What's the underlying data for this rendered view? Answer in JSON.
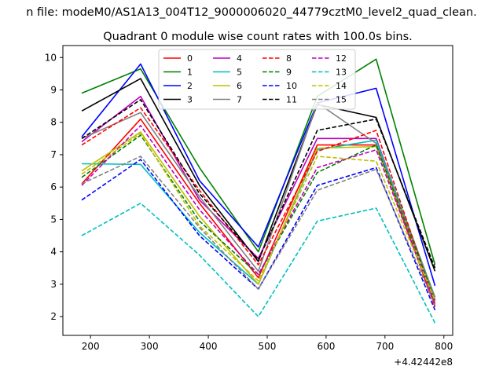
{
  "figure": {
    "suptitle": "n file: modeM0/AS1A13_004T12_9000006020_44779cztM0_level2_quad_clean.",
    "offset_label": "+4.42442e8"
  },
  "chart_data": {
    "type": "line",
    "title": "Quadrant 0 module wise count rates with 100.0s bins.",
    "xlabel": "",
    "ylabel": "",
    "x_offset": 442442000,
    "x": [
      442442185,
      442442285,
      442442385,
      442442485,
      442442585,
      442442685,
      442442785
    ],
    "xlim": [
      442442153,
      442442815
    ],
    "ylim": [
      1.42,
      10.37
    ],
    "xticks": [
      200,
      300,
      400,
      500,
      600,
      700,
      800
    ],
    "yticks": [
      2,
      3,
      4,
      5,
      6,
      7,
      8,
      9,
      10
    ],
    "legend": {
      "location": "top-center",
      "columns": 4
    },
    "grid": false,
    "series": [
      {
        "name": "0",
        "color": "#ff0000",
        "dash": "solid",
        "values": [
          6.1,
          8.1,
          5.5,
          3.2,
          7.3,
          7.3,
          2.3
        ]
      },
      {
        "name": "1",
        "color": "#008000",
        "dash": "solid",
        "values": [
          8.9,
          9.65,
          6.6,
          4.0,
          8.8,
          9.95,
          3.6
        ]
      },
      {
        "name": "2",
        "color": "#0000ff",
        "dash": "solid",
        "values": [
          7.55,
          9.8,
          6.2,
          4.15,
          8.6,
          9.05,
          2.95
        ]
      },
      {
        "name": "3",
        "color": "#000000",
        "dash": "solid",
        "values": [
          8.35,
          9.35,
          6.05,
          3.7,
          8.55,
          8.15,
          3.4
        ]
      },
      {
        "name": "4",
        "color": "#bf00bf",
        "dash": "solid",
        "values": [
          7.4,
          8.8,
          5.6,
          3.8,
          7.5,
          7.5,
          2.5
        ]
      },
      {
        "name": "5",
        "color": "#00bfbf",
        "dash": "solid",
        "values": [
          6.72,
          6.7,
          4.6,
          3.0,
          7.15,
          7.45,
          2.6
        ]
      },
      {
        "name": "6",
        "color": "#bfbf00",
        "dash": "solid",
        "values": [
          6.5,
          7.7,
          5.1,
          3.0,
          7.2,
          7.25,
          2.55
        ]
      },
      {
        "name": "7",
        "color": "#808080",
        "dash": "solid",
        "values": [
          7.5,
          8.3,
          5.7,
          3.4,
          8.6,
          7.35,
          2.6
        ]
      },
      {
        "name": "8",
        "color": "#ff0000",
        "dash": "dashed",
        "values": [
          7.3,
          8.45,
          5.9,
          3.6,
          7.1,
          7.75,
          2.4
        ]
      },
      {
        "name": "9",
        "color": "#008000",
        "dash": "dashed",
        "values": [
          6.3,
          7.6,
          4.95,
          3.3,
          6.45,
          7.3,
          2.5
        ]
      },
      {
        "name": "10",
        "color": "#0000ff",
        "dash": "dashed",
        "values": [
          5.6,
          6.85,
          4.5,
          2.85,
          6.05,
          6.6,
          2.2
        ]
      },
      {
        "name": "11",
        "color": "#000000",
        "dash": "dashed",
        "values": [
          7.5,
          8.7,
          5.8,
          3.75,
          7.75,
          8.1,
          3.5
        ]
      },
      {
        "name": "12",
        "color": "#bf00bf",
        "dash": "dashed",
        "values": [
          6.05,
          7.9,
          5.3,
          3.3,
          6.6,
          7.15,
          2.4
        ]
      },
      {
        "name": "13",
        "color": "#00bfbf",
        "dash": "dashed",
        "values": [
          4.5,
          5.5,
          3.9,
          2.0,
          4.95,
          5.35,
          1.8
        ]
      },
      {
        "name": "14",
        "color": "#bfbf00",
        "dash": "dashed",
        "values": [
          6.4,
          7.65,
          4.8,
          3.1,
          6.95,
          6.8,
          2.5
        ]
      },
      {
        "name": "15",
        "color": "#808080",
        "dash": "dashed",
        "values": [
          6.1,
          6.95,
          4.75,
          2.85,
          5.9,
          6.55,
          2.35
        ]
      }
    ]
  }
}
